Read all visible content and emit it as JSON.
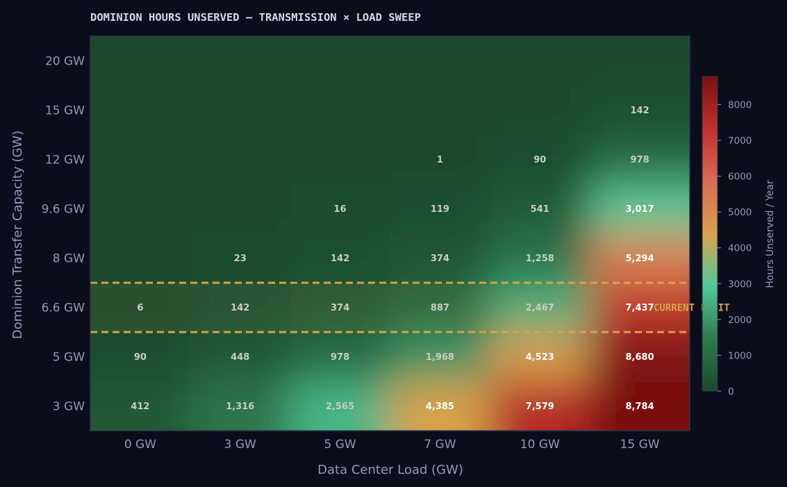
{
  "chart_data": {
    "type": "heatmap",
    "title": "DOMINION HOURS UNSERVED — TRANSMISSION × LOAD SWEEP",
    "xlabel": "Data Center Load (GW)",
    "ylabel": "Dominion Transfer Capacity (GW)",
    "x_categories": [
      "0 GW",
      "3 GW",
      "5 GW",
      "7 GW",
      "10 GW",
      "15 GW"
    ],
    "y_categories": [
      "3 GW",
      "5 GW",
      "6.6 GW",
      "8 GW",
      "9.6 GW",
      "12 GW",
      "15 GW",
      "20 GW"
    ],
    "values": [
      [
        412,
        1316,
        2565,
        4385,
        7579,
        8784
      ],
      [
        90,
        448,
        978,
        1968,
        4523,
        8680
      ],
      [
        6,
        142,
        374,
        887,
        2467,
        7437
      ],
      [
        0,
        23,
        142,
        374,
        1258,
        5294
      ],
      [
        0,
        0,
        16,
        119,
        541,
        3017
      ],
      [
        0,
        0,
        0,
        1,
        90,
        978
      ],
      [
        0,
        0,
        0,
        0,
        0,
        142
      ],
      [
        0,
        0,
        0,
        0,
        0,
        0
      ]
    ],
    "colorbar": {
      "label": "Hours Unserved / Year",
      "range": [
        0,
        8784
      ],
      "ticks": [
        0,
        1000,
        2000,
        3000,
        4000,
        5000,
        6000,
        7000,
        8000
      ],
      "colors": [
        "#1b4a2e",
        "#2f7a4c",
        "#52c99a",
        "#d8a24a",
        "#d96b55",
        "#c1302c",
        "#7a1010"
      ]
    },
    "highlight": {
      "row": "6.6 GW",
      "label": "CURRENT LIMIT",
      "color": "#d8a24a"
    }
  }
}
